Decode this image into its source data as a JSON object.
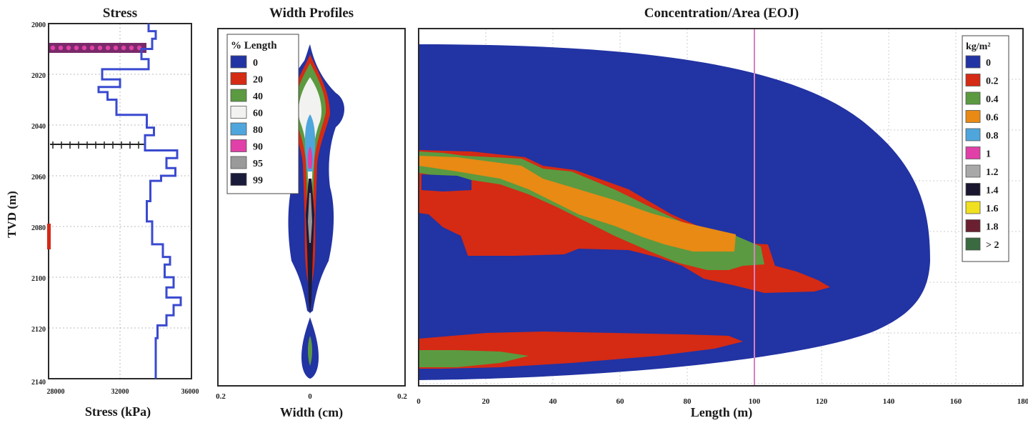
{
  "figure": {
    "colors": {
      "blue": "#2233a3",
      "red": "#d52a14",
      "green": "#5b9a40",
      "orange": "#e88a14",
      "lightblue": "#4ea6dc",
      "magenta": "#e040a8",
      "frame": "#2a2a2a",
      "line": "#3a4ad0"
    }
  },
  "chart_data": [
    {
      "type": "line",
      "title": "Stress",
      "xlabel": "Stress (kPa)",
      "ylabel": "TVD (m)",
      "xlim": [
        28000,
        36000
      ],
      "ylim": [
        2000,
        2140
      ],
      "x_ticks": [
        "28000",
        "32000",
        "36000"
      ],
      "y_ticks": [
        "2000",
        "2020",
        "2040",
        "2060",
        "2080",
        "2100",
        "2120",
        "2140"
      ],
      "series": [
        {
          "depth": [
            2000,
            2003,
            2003,
            2006,
            2006,
            2010,
            2010,
            2014,
            2014,
            2018,
            2018,
            2022,
            2022,
            2025,
            2025,
            2027,
            2027,
            2030,
            2030,
            2036,
            2036,
            2041,
            2041,
            2044,
            2044,
            2050,
            2050,
            2053,
            2053,
            2057,
            2057,
            2060,
            2060,
            2062,
            2062,
            2070,
            2070,
            2078,
            2078,
            2087,
            2087,
            2092,
            2092,
            2095,
            2095,
            2100,
            2100,
            2104,
            2104,
            2108,
            2108,
            2111,
            2111,
            2115,
            2115,
            2119,
            2119,
            2124,
            2124,
            2140
          ],
          "stress": [
            33600,
            33600,
            34000,
            34000,
            33800,
            33800,
            33200,
            33200,
            33600,
            33600,
            31000,
            31000,
            32000,
            32000,
            30800,
            30800,
            31300,
            31300,
            31800,
            31800,
            33500,
            33500,
            33900,
            33900,
            33400,
            33400,
            35200,
            35200,
            34600,
            34600,
            35100,
            35100,
            34300,
            34300,
            33700,
            33700,
            33500,
            33500,
            33800,
            33800,
            34400,
            34400,
            34800,
            34800,
            34500,
            34500,
            35000,
            35000,
            34600,
            34600,
            35400,
            35400,
            35000,
            35000,
            34600,
            34600,
            34100,
            34100,
            34000,
            34000
          ]
        }
      ]
    },
    {
      "type": "area",
      "title": "Width Profiles",
      "xlabel": "Width (cm)",
      "xlim": [
        -0.2,
        0.2
      ],
      "x_ticks": [
        "0.2",
        "0",
        "0.2"
      ],
      "legend": {
        "title": "% Length",
        "placement": "top-left",
        "entries": [
          "0",
          "20",
          "40",
          "60",
          "80",
          "90",
          "95",
          "99"
        ],
        "colors": [
          "#2233a3",
          "#d52a14",
          "#5b9a40",
          "#f2f2f0",
          "#4ea6dc",
          "#e040a8",
          "#9a9a9a",
          "#1a1a3a"
        ]
      }
    },
    {
      "type": "heatmap",
      "title": "Concentration/Area (EOJ)",
      "xlabel": "Length (m)",
      "xlim": [
        0,
        180
      ],
      "x_ticks": [
        "0",
        "20",
        "40",
        "60",
        "80",
        "100",
        "120",
        "140",
        "160",
        "180"
      ],
      "legend": {
        "title": "kg/m²",
        "placement": "top-right",
        "entries": [
          "0",
          "0.2",
          "0.4",
          "0.6",
          "0.8",
          "1",
          "1.2",
          "1.4",
          "1.6",
          "1.8",
          "> 2"
        ],
        "colors": [
          "#2233a3",
          "#d52a14",
          "#5b9a40",
          "#e88a14",
          "#4ea6dc",
          "#e040a8",
          "#a8a8a8",
          "#1a1630",
          "#f0e020",
          "#6a2030",
          "#3a6a40"
        ]
      }
    }
  ]
}
